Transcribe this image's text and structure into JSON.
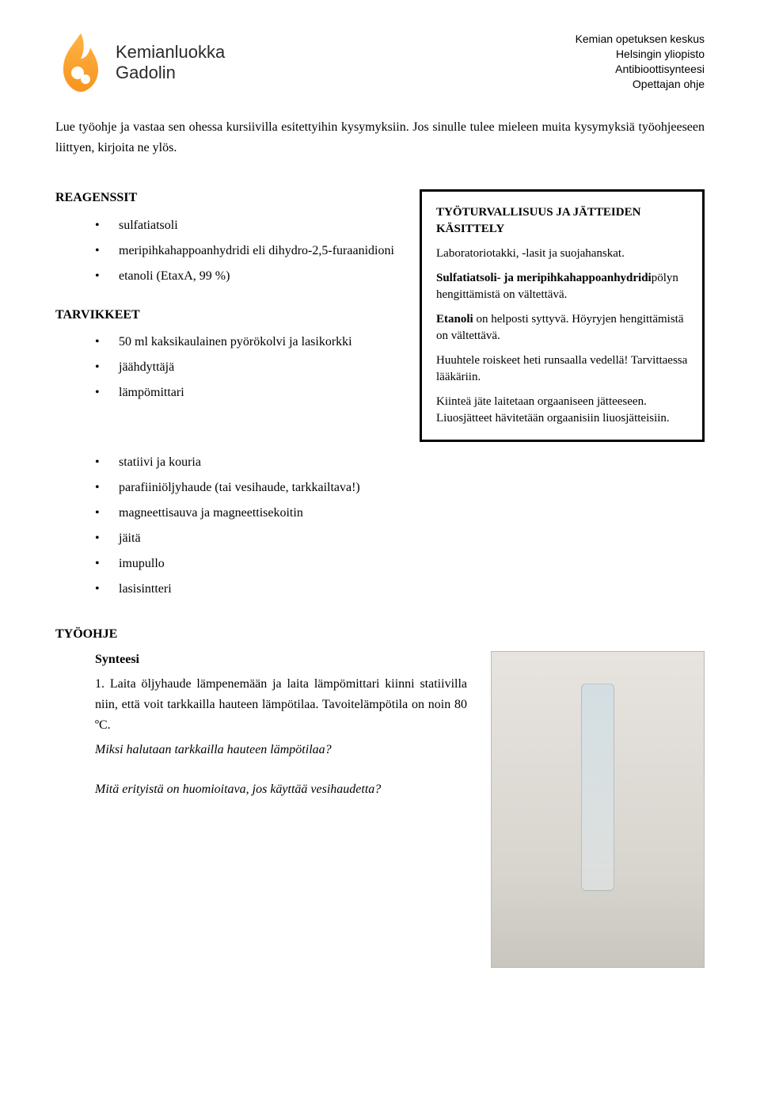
{
  "header": {
    "logo_line1": "Kemianluokka",
    "logo_line2": "Gadolin",
    "right_lines": [
      "Kemian opetuksen keskus",
      "Helsingin yliopisto",
      "Antibioottisynteesi",
      "Opettajan ohje"
    ]
  },
  "intro": "Lue työohje ja vastaa sen ohessa kursiivilla esitettyihin kysymyksiin. Jos sinulle tulee mieleen muita kysymyksiä työohjeeseen liittyen, kirjoita ne ylös.",
  "reagents_heading": "REAGENSSIT",
  "reagents": [
    "sulfatiatsoli",
    "meripihkahappoanhydridi eli dihydro-2,5-furaanidioni",
    "etanoli (EtaxA, 99 %)"
  ],
  "equipment_heading": "TARVIKKEET",
  "equipment": [
    "50 ml kaksikaulainen pyörökolvi ja lasikorkki",
    "jäähdyttäjä",
    "lämpömittari",
    "statiivi ja kouria",
    "parafiiniöljyhaude (tai vesihaude, tarkkailtava!)",
    "magneettisauva ja magneettisekoitin",
    "jäitä",
    "imupullo",
    "lasisintteri"
  ],
  "safety": {
    "title": "TYÖTURVALLISUUS JA JÄTTEIDEN KÄSITTELY",
    "p1": "Laboratoriotakki, -lasit ja suojahanskat.",
    "p2_html": "<b>Sulfatiatsoli- ja meripihkahappoanhydridi</b>pölyn hengittämistä on vältettävä.",
    "p3_html": "<b>Etanoli</b> on helposti syttyvä. Höyryjen hengittämistä on vältettävä.",
    "p4": "Huuhtele roiskeet heti runsaalla vedellä! Tarvittaessa lääkäriin.",
    "p5": "Kiinteä jäte laitetaan orgaaniseen jätteeseen. Liuosjätteet hävitetään orgaanisiin liuosjätteisiin."
  },
  "work": {
    "heading": "TYÖOHJE",
    "subheading": "Synteesi",
    "step1": "1. Laita öljyhaude lämpenemään ja laita lämpömittari kiinni statiivilla niin, että voit tarkkailla hauteen lämpötilaa. Tavoitelämpötila on noin 80 ºC.",
    "q1": "Miksi halutaan tarkkailla hauteen lämpötilaa?",
    "q2": "Mitä erityistä on huomioitava, jos käyttää vesihaudetta?"
  },
  "colors": {
    "logo_orange": "#f7941e",
    "logo_orange_light": "#ffb347",
    "box_border": "#000000"
  }
}
